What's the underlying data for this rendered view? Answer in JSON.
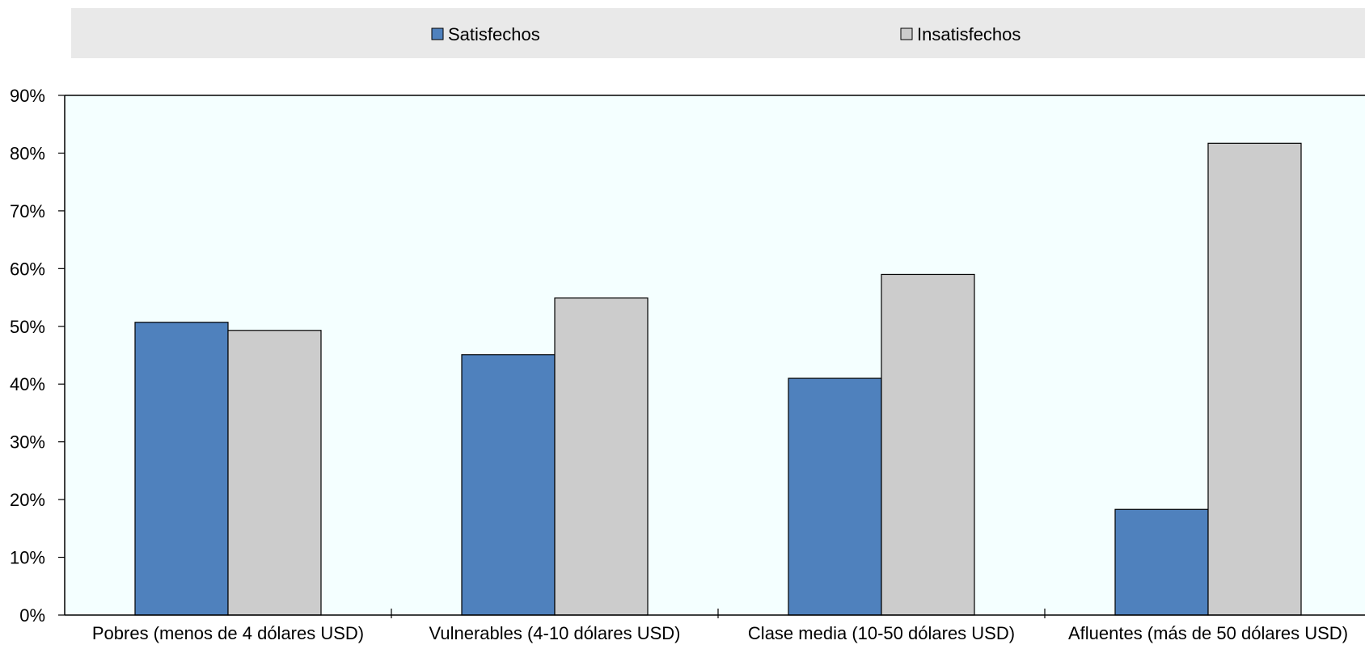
{
  "chart_data": {
    "type": "bar",
    "categories": [
      "Pobres (menos de 4 dólares USD)",
      "Vulnerables (4-10 dólares USD)",
      "Clase media (10-50 dólares USD)",
      "Afluentes (más de 50 dólares USD)"
    ],
    "series": [
      {
        "name": "Satisfechos",
        "values": [
          50.7,
          45.1,
          41.0,
          18.3
        ],
        "color": "#4f81bd"
      },
      {
        "name": "Insatisfechos",
        "values": [
          49.3,
          54.9,
          59.0,
          81.7
        ],
        "color": "#cccccc"
      }
    ],
    "ylim": [
      0,
      90
    ],
    "yticks": [
      0,
      10,
      20,
      30,
      40,
      50,
      60,
      70,
      80,
      90
    ],
    "ytick_labels": [
      "0%",
      "10%",
      "20%",
      "30%",
      "40%",
      "50%",
      "60%",
      "70%",
      "80%",
      "90%"
    ],
    "legend_position": "top",
    "grid": false,
    "plot_background": "#f4ffff",
    "legend_background": "#e9e9e9",
    "title": "",
    "xlabel": "",
    "ylabel": ""
  }
}
